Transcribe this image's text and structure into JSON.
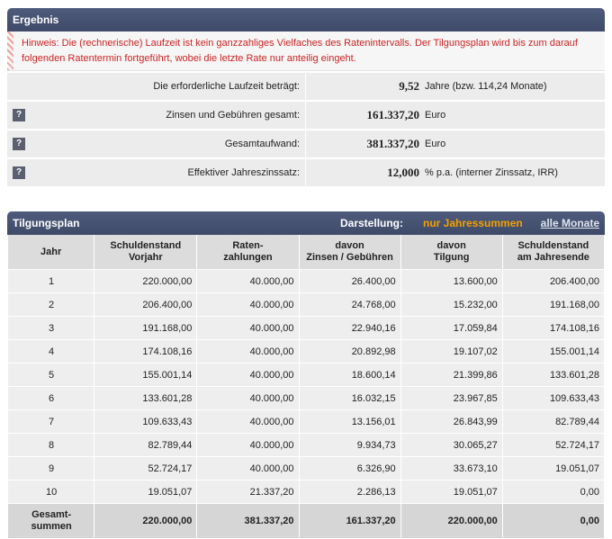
{
  "ergebnis": {
    "title": "Ergebnis",
    "notice": "Hinweis: Die (rechnerische) Laufzeit ist kein ganzzahliges Vielfaches des Ratenintervalls. Der Tilgungsplan wird bis zum darauf folgenden Ratentermin fortgeführt, wobei die letzte Rate nur anteilig eingeht.",
    "rows": [
      {
        "label": "Die erforderliche Laufzeit beträgt:",
        "value": "9,52",
        "unit": "Jahre  (bzw. 114,24 Monate)",
        "help": ""
      },
      {
        "label": "Zinsen und Gebühren gesamt:",
        "value": "161.337,20",
        "unit": "Euro",
        "help": "?"
      },
      {
        "label": "Gesamtaufwand:",
        "value": "381.337,20",
        "unit": "Euro",
        "help": "?"
      },
      {
        "label": "Effektiver Jahreszinssatz:",
        "value": "12,000",
        "unit": "% p.a.   (interner Zinssatz, IRR)",
        "help": "?"
      }
    ]
  },
  "tilgungsplan": {
    "title": "Tilgungsplan",
    "darstellung_label": "Darstellung:",
    "option_active": "nur Jahressummen",
    "option_link": "alle Monate",
    "headers": [
      [
        "Jahr"
      ],
      [
        "Schuldenstand",
        "Vorjahr"
      ],
      [
        "Raten-",
        "zahlungen"
      ],
      [
        "davon",
        "Zinsen / Gebühren"
      ],
      [
        "davon",
        "Tilgung"
      ],
      [
        "Schuldenstand",
        "am Jahresende"
      ]
    ],
    "rows": [
      [
        "1",
        "220.000,00",
        "40.000,00",
        "26.400,00",
        "13.600,00",
        "206.400,00"
      ],
      [
        "2",
        "206.400,00",
        "40.000,00",
        "24.768,00",
        "15.232,00",
        "191.168,00"
      ],
      [
        "3",
        "191.168,00",
        "40.000,00",
        "22.940,16",
        "17.059,84",
        "174.108,16"
      ],
      [
        "4",
        "174.108,16",
        "40.000,00",
        "20.892,98",
        "19.107,02",
        "155.001,14"
      ],
      [
        "5",
        "155.001,14",
        "40.000,00",
        "18.600,14",
        "21.399,86",
        "133.601,28"
      ],
      [
        "6",
        "133.601,28",
        "40.000,00",
        "16.032,15",
        "23.967,85",
        "109.633,43"
      ],
      [
        "7",
        "109.633,43",
        "40.000,00",
        "13.156,01",
        "26.843,99",
        "82.789,44"
      ],
      [
        "8",
        "82.789,44",
        "40.000,00",
        "9.934,73",
        "30.065,27",
        "52.724,17"
      ],
      [
        "9",
        "52.724,17",
        "40.000,00",
        "6.326,90",
        "33.673,10",
        "19.051,07"
      ],
      [
        "10",
        "19.051,07",
        "21.337,20",
        "2.286,13",
        "19.051,07",
        "0,00"
      ]
    ],
    "sum_label": [
      "Gesamt-",
      "summen"
    ],
    "sum_values": [
      "220.000,00",
      "381.337,20",
      "161.337,20",
      "220.000,00",
      "0,00"
    ]
  }
}
